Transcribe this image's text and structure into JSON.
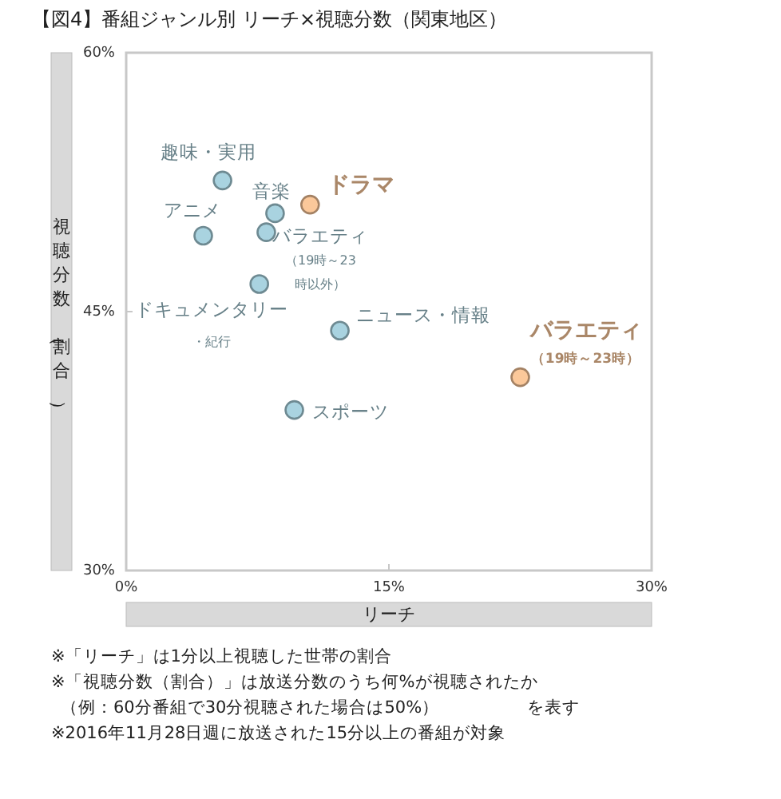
{
  "chart_data": {
    "type": "scatter",
    "title": "【図4】番組ジャンル別  リーチ×視聴分数（関東地区）",
    "xlabel": "リーチ",
    "ylabel": "視聴分数（割合）",
    "xlim": [
      0,
      30
    ],
    "xticks": [
      {
        "value": 0,
        "label": "0%"
      },
      {
        "value": 15,
        "label": "15%"
      },
      {
        "value": 30,
        "label": "30%"
      }
    ],
    "ylim": [
      30,
      60
    ],
    "yticks": [
      {
        "value": 30,
        "label": "30%"
      },
      {
        "value": 45,
        "label": "45%"
      },
      {
        "value": 60,
        "label": "60%"
      }
    ],
    "grid": false,
    "marker": "circle",
    "series": [
      {
        "color": "#a9d3e0",
        "x": [
          5.5,
          8.5,
          4.4,
          8.0,
          7.6,
          12.2,
          9.6
        ],
        "values": [
          52.6,
          50.7,
          49.4,
          49.6,
          46.6,
          43.9,
          39.3
        ]
      },
      {
        "color": "#fbc89a",
        "x": [
          10.5,
          22.5
        ],
        "values": [
          51.2,
          41.2
        ]
      }
    ],
    "annotations": [
      {
        "text": "趣味・実用",
        "x": 5.5,
        "y": 52.6
      },
      {
        "text": "音楽",
        "x": 8.5,
        "y": 50.7
      },
      {
        "text": "アニメ",
        "x": 4.4,
        "y": 49.4
      },
      {
        "text": "バラエティ（19時～23時以外）",
        "x": 8.0,
        "y": 49.6
      },
      {
        "text": "ドキュメンタリー・紀行",
        "x": 7.6,
        "y": 46.6
      },
      {
        "text": "ニュース・情報",
        "x": 12.2,
        "y": 43.9
      },
      {
        "text": "スポーツ",
        "x": 9.6,
        "y": 39.3
      },
      {
        "text": "ドラマ",
        "x": 10.5,
        "y": 51.2
      },
      {
        "text": "バラエティ（19時～23時）",
        "x": 22.5,
        "y": 41.2
      },
      "※「リーチ」は1分以上視聴した世帯の割合",
      "※「視聴分数（割合）」は放送分数のうち何%が視聴されたか",
      "（例：60分番組で30分視聴された場合は50%）　　　　　を表す",
      "※2016年11月28日週に放送された15分以上の番組が対象"
    ]
  }
}
